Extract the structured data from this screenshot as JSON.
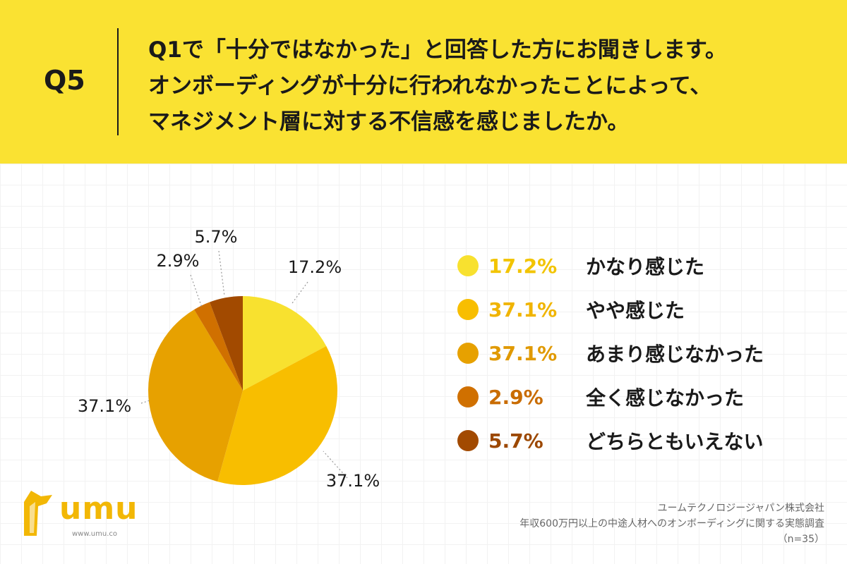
{
  "header": {
    "qnum": "Q5",
    "lines": [
      "Q1で「十分ではなかった」と回答した方にお聞きします。",
      "オンボーディングが十分に行われなかったことによって、",
      "マネジメント層に対する不信感を感じましたか。"
    ]
  },
  "chart_data": {
    "type": "pie",
    "categories": [
      "かなり感じた",
      "やや感じた",
      "あまり感じなかった",
      "全く感じなかった",
      "どちらともいえない"
    ],
    "values": [
      17.2,
      37.1,
      37.1,
      2.9,
      5.7
    ],
    "labels": [
      "17.2%",
      "37.1%",
      "37.1%",
      "2.9%",
      "5.7%"
    ],
    "colors": [
      "#F8E12F",
      "#F8BE00",
      "#E7A100",
      "#D07000",
      "#A24A00"
    ],
    "legend_value_colors": [
      "#F2C400",
      "#F0B400",
      "#E09900",
      "#C96C00",
      "#9C4800"
    ],
    "legend": "right"
  },
  "footer": {
    "company": "ユームテクノロジージャパン株式会社",
    "survey": "年収600万円以上の中途人材へのオンボーディングに関する実態調査",
    "n": "（n=35）"
  },
  "logo": {
    "word": "umu",
    "url": "www.umu.co"
  }
}
